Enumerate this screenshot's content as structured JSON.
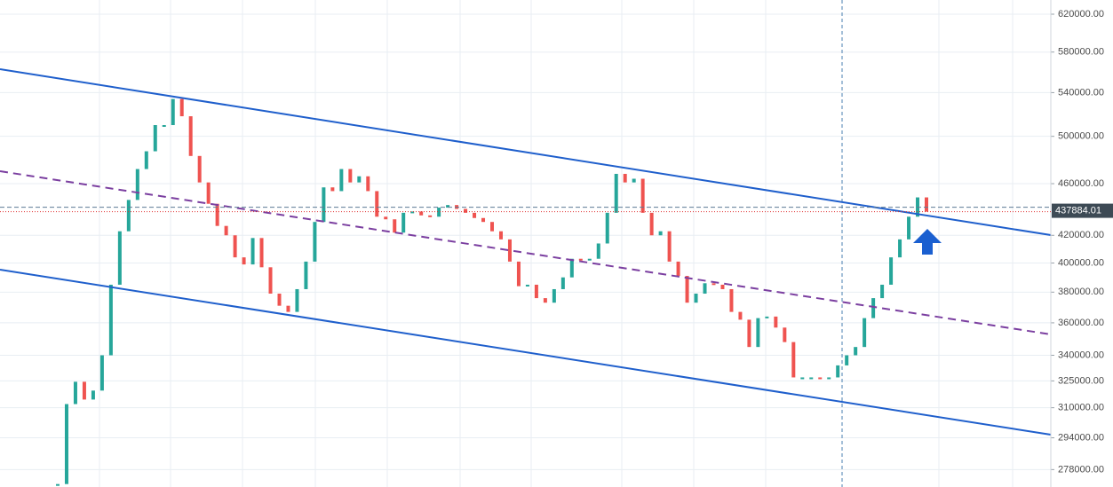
{
  "chart_data": {
    "type": "candle-steps",
    "log_scale": true,
    "grid": true,
    "up_color": "#26a69a",
    "down_color": "#ef5350",
    "values": [
      271000,
      312000,
      324500,
      314500,
      319500,
      340000,
      385000,
      423000,
      447000,
      472000,
      487000,
      510000,
      510000,
      534000,
      518000,
      483000,
      461000,
      444000,
      427000,
      420000,
      404000,
      399000,
      418000,
      397000,
      379000,
      371000,
      367000,
      382000,
      401000,
      430000,
      457000,
      454000,
      472000,
      461000,
      466000,
      454000,
      434000,
      432000,
      422000,
      437000,
      438000,
      435000,
      434000,
      441000,
      443000,
      440000,
      437000,
      433000,
      430000,
      423000,
      417000,
      401000,
      384000,
      385000,
      376000,
      373000,
      382000,
      390000,
      403000,
      402000,
      403000,
      414000,
      437000,
      468000,
      461000,
      464000,
      437000,
      420000,
      423000,
      401000,
      391000,
      373000,
      379000,
      386000,
      385000,
      382000,
      367000,
      362000,
      345000,
      363000,
      364000,
      357000,
      348000,
      327000,
      327000,
      327000,
      326000,
      327000,
      334000,
      340000,
      345000,
      363000,
      376000,
      385000,
      404000,
      417000,
      434000,
      449000,
      437884.01
    ],
    "last_price": 437884.01,
    "ylim": [
      269600,
      635700
    ],
    "yticks": [
      {
        "value": 278000,
        "label": "278000.00"
      },
      {
        "value": 294000,
        "label": "294000.00"
      },
      {
        "value": 310000,
        "label": "310000.00"
      },
      {
        "value": 325000,
        "label": "325000.00"
      },
      {
        "value": 340000,
        "label": "340000.00"
      },
      {
        "value": 360000,
        "label": "360000.00"
      },
      {
        "value": 380000,
        "label": "380000.00"
      },
      {
        "value": 400000,
        "label": "400000.00"
      },
      {
        "value": 420000,
        "label": "420000.00"
      },
      {
        "value": 460000,
        "label": "460000.00"
      },
      {
        "value": 500000,
        "label": "500000.00"
      },
      {
        "value": 540000,
        "label": "540000.00"
      },
      {
        "value": 580000,
        "label": "580000.00"
      },
      {
        "value": 620000,
        "label": "620000.00"
      }
    ]
  }
}
